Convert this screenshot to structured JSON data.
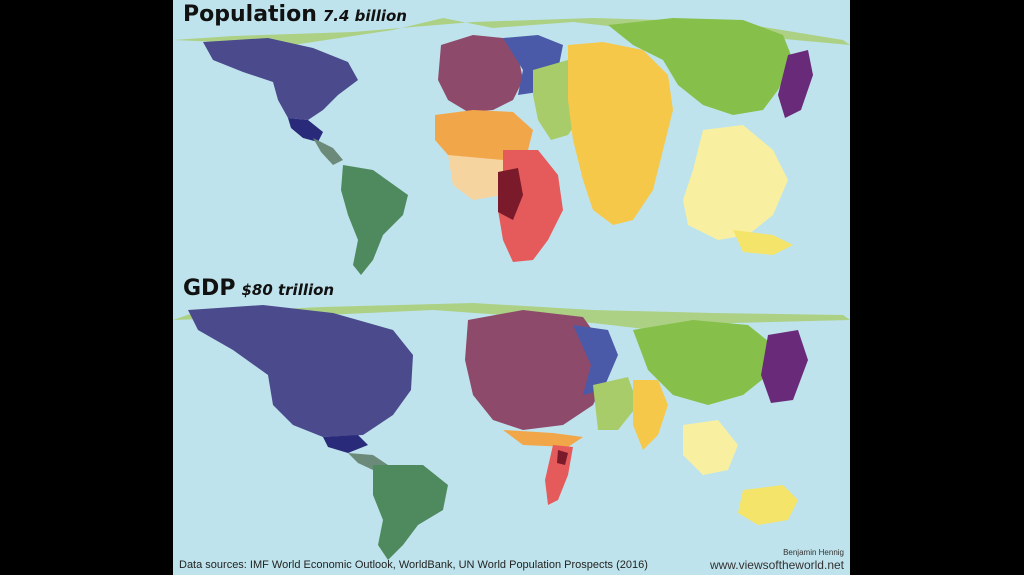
{
  "panels": {
    "population": {
      "title": "Population",
      "subtitle": "7.4 billion"
    },
    "gdp": {
      "title": "GDP",
      "subtitle": "$80 trillion"
    }
  },
  "footer": {
    "sources": "Data sources: IMF World Economic Outlook, WorldBank, UN World Population Prospects (2016)",
    "author": "Benjamin Hennig",
    "website": "www.viewsoftheworld.net"
  },
  "colors": {
    "ocean": "#bfe3ec",
    "north_america": "#4a4a8c",
    "central_america": "#6b8a7a",
    "south_america": "#4f8a5e",
    "europe": "#8e4a6a",
    "eastern_europe": "#4a5aa8",
    "africa_north": "#f2a64a",
    "africa_west": "#f5d4a0",
    "africa_east": "#e55a5a",
    "middle_east": "#a8cc6a",
    "south_asia": "#f5c84a",
    "east_asia": "#86c04a",
    "japan_korea": "#6a2a7a",
    "southeast_asia": "#f8f0a0",
    "oceania": "#f5e46a"
  }
}
